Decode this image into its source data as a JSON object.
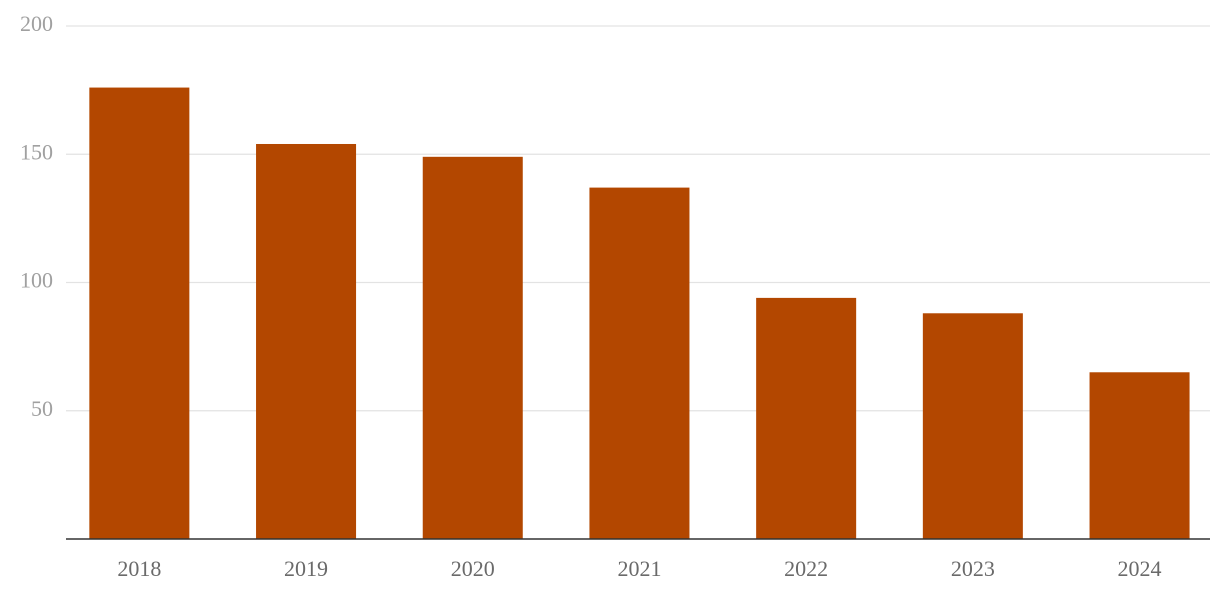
{
  "chart_data": {
    "type": "bar",
    "categories": [
      "2018",
      "2019",
      "2020",
      "2021",
      "2022",
      "2023",
      "2024"
    ],
    "values": [
      176,
      154,
      149,
      137,
      94,
      88,
      65
    ],
    "color": "#b34700",
    "ylim": [
      0,
      200
    ],
    "yticks": [
      50,
      100,
      150,
      200
    ],
    "grid": true
  }
}
